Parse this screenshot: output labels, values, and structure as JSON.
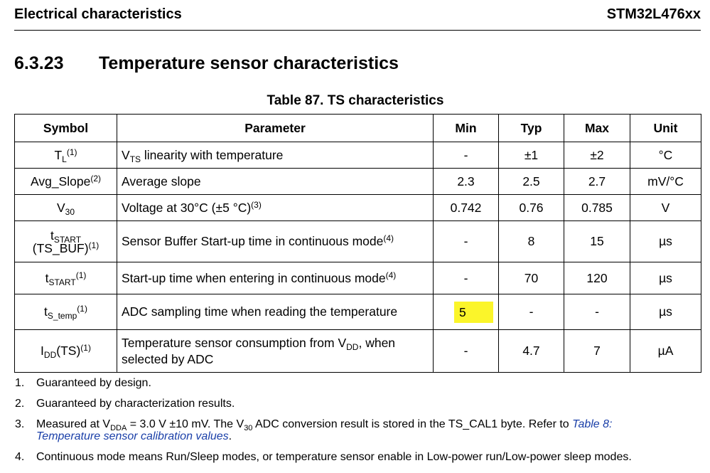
{
  "header": {
    "left": "Electrical characteristics",
    "right": "STM32L476xx"
  },
  "section": {
    "number": "6.3.23",
    "title": "Temperature sensor characteristics"
  },
  "table_title": "Table 87. TS characteristics",
  "table": {
    "headers": [
      "Symbol",
      "Parameter",
      "Min",
      "Typ",
      "Max",
      "Unit"
    ],
    "rows": [
      {
        "sym": "T",
        "sym_sub": "L",
        "sym_sup": "(1)",
        "param": "V",
        "param_sub": "TS",
        "param_rest": " linearity with temperature",
        "min": "-",
        "typ": "±1",
        "max": "±2",
        "unit": "°C"
      },
      {
        "sym": "Avg_Slope",
        "sym_sup": "(2)",
        "param": "Average slope",
        "min": "2.3",
        "typ": "2.5",
        "max": "2.7",
        "unit": "mV/°C"
      },
      {
        "sym": "V",
        "sym_sub": "30",
        "param": "Voltage at 30°C (±5 °C)",
        "param_sup": "(3)",
        "min": "0.742",
        "typ": "0.76",
        "max": "0.785",
        "unit": "V"
      },
      {
        "sym": "t",
        "sym_sub": "START",
        "sym_line2": "(TS_BUF)",
        "sym_sup": "(1)",
        "param": "Sensor Buffer Start-up time in continuous mode",
        "param_sup": "(4)",
        "min": "-",
        "typ": "8",
        "max": "15",
        "unit": "µs"
      },
      {
        "sym": "t",
        "sym_sub": "START",
        "sym_sup": "(1)",
        "param": "Start-up time when entering in continuous mode",
        "param_sup": "(4)",
        "min": "-",
        "typ": "70",
        "max": "120",
        "unit": "µs"
      },
      {
        "sym": "t",
        "sym_sub": "S_temp",
        "sym_sup": "(1)",
        "param": "ADC sampling time when reading the temperature",
        "min": "5",
        "typ": "-",
        "max": "-",
        "unit": "µs"
      },
      {
        "sym": "I",
        "sym_sub": "DD",
        "sym_rest": "(TS)",
        "sym_sup": "(1)",
        "param": "Temperature sensor consumption from V",
        "param_sub": "DD",
        "param_rest": ", when",
        "param_line2": "selected by ADC",
        "min": "-",
        "typ": "4.7",
        "max": "7",
        "unit": "µA"
      }
    ]
  },
  "notes": {
    "n1": {
      "num": "1.",
      "text": "Guaranteed by design."
    },
    "n2": {
      "num": "2.",
      "text": "Guaranteed by characterization results."
    },
    "n3": {
      "num": "3.",
      "a": "Measured at V",
      "a_sub": "DDA",
      "b": " = 3.0 V ±10 mV. The V",
      "b_sub": "30",
      "c": " ADC conversion result is stored in the TS_CAL1 byte. Refer to ",
      "link1": "Table 8:",
      "link2": "Temperature sensor calibration values",
      "end": "."
    },
    "n4": {
      "num": "4.",
      "text": "Continuous mode means Run/Sleep modes, or temperature sensor enable in Low-power run/Low-power sleep modes."
    }
  },
  "colors": {
    "highlight": "#fbf52a",
    "link": "#1a3fa8"
  }
}
